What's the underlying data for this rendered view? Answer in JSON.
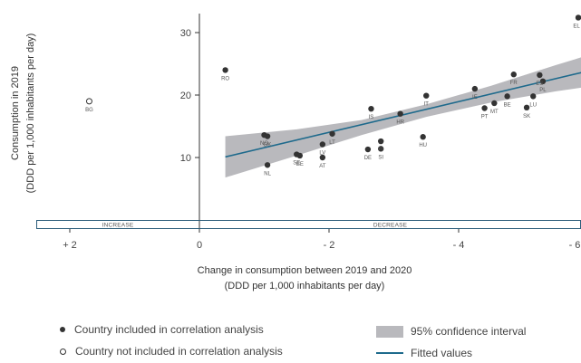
{
  "chart_data": {
    "type": "scatter",
    "title": "",
    "xlabel": "Change in consumption between 2019 and 2020",
    "xlabel_sub": "(DDD per 1,000 inhabitants per day)",
    "ylabel": "Consumption in 2019",
    "ylabel_sub": "(DDD per 1,000 inhabitants per day)",
    "x_reversed": true,
    "xlim": [
      3.1,
      -6.1
    ],
    "ylim": [
      0,
      33
    ],
    "xticks": [
      2,
      0,
      -2,
      -4,
      -6
    ],
    "xtick_labels": [
      "+ 2",
      "0",
      "- 2",
      "- 4",
      "- 6"
    ],
    "yticks": [
      10,
      20,
      30
    ],
    "ytick_labels": [
      "10",
      "20",
      "30"
    ],
    "band_labels": {
      "increase": "INCREASE",
      "decrease": "DECREASE"
    },
    "grid": false,
    "colors": {
      "points": "#333333",
      "fit": "#1e6a8c",
      "ci": "#b9b9bd",
      "frame": "#2b5d7a"
    },
    "points": [
      {
        "label": "BG",
        "x": 1.7,
        "y": 19.0,
        "included": false
      },
      {
        "label": "RO",
        "x": -0.4,
        "y": 24.0,
        "included": true
      },
      {
        "label": "NO",
        "x": -1.0,
        "y": 13.6,
        "included": true
      },
      {
        "label": "DK",
        "x": -1.05,
        "y": 13.4,
        "included": true
      },
      {
        "label": "NL",
        "x": -1.05,
        "y": 8.8,
        "included": true
      },
      {
        "label": "SE",
        "x": -1.5,
        "y": 10.5,
        "included": true
      },
      {
        "label": "EE",
        "x": -1.55,
        "y": 10.3,
        "included": true
      },
      {
        "label": "AT",
        "x": -1.9,
        "y": 10.0,
        "included": true
      },
      {
        "label": "LV",
        "x": -1.9,
        "y": 12.1,
        "included": true
      },
      {
        "label": "LT",
        "x": -2.05,
        "y": 13.8,
        "included": true
      },
      {
        "label": "IS",
        "x": -2.65,
        "y": 17.8,
        "included": true
      },
      {
        "label": "DE",
        "x": -2.6,
        "y": 11.3,
        "included": true
      },
      {
        "label": "FI",
        "x": -2.8,
        "y": 12.6,
        "included": true
      },
      {
        "label": "SI",
        "x": -2.8,
        "y": 11.4,
        "included": true
      },
      {
        "label": "HR",
        "x": -3.1,
        "y": 17.0,
        "included": true
      },
      {
        "label": "IT",
        "x": -3.5,
        "y": 19.9,
        "included": true
      },
      {
        "label": "HU",
        "x": -3.45,
        "y": 13.3,
        "included": true
      },
      {
        "label": "IE",
        "x": -4.25,
        "y": 21.0,
        "included": true
      },
      {
        "label": "PT",
        "x": -4.4,
        "y": 17.9,
        "included": true
      },
      {
        "label": "MT",
        "x": -4.55,
        "y": 18.7,
        "included": true
      },
      {
        "label": "BE",
        "x": -4.75,
        "y": 19.8,
        "included": true
      },
      {
        "label": "FR",
        "x": -4.85,
        "y": 23.3,
        "included": true
      },
      {
        "label": "SK",
        "x": -5.05,
        "y": 18.0,
        "included": true
      },
      {
        "label": "ES",
        "x": -5.25,
        "y": 23.2,
        "included": true
      },
      {
        "label": "PL",
        "x": -5.3,
        "y": 22.2,
        "included": true
      },
      {
        "label": "LU",
        "x": -5.15,
        "y": 19.8,
        "included": true
      },
      {
        "label": "EL",
        "x": -6.05,
        "y": 32.4,
        "included": true
      }
    ],
    "fitted_line": {
      "x": [
        -0.4,
        -6.1
      ],
      "y": [
        10.1,
        24.1
      ]
    },
    "confidence_interval": {
      "x": [
        -0.4,
        -1.5,
        -2.5,
        -3.5,
        -4.5,
        -5.5,
        -6.1
      ],
      "lower": [
        6.8,
        10.3,
        13.6,
        16.5,
        18.8,
        20.6,
        21.5
      ],
      "upper": [
        13.4,
        14.5,
        16.0,
        18.5,
        21.5,
        24.8,
        26.7
      ]
    }
  },
  "legend": {
    "included": "Country included in correlation analysis",
    "not_included": "Country not included in correlation analysis",
    "ci": "95% confidence interval",
    "fitted": "Fitted values"
  }
}
